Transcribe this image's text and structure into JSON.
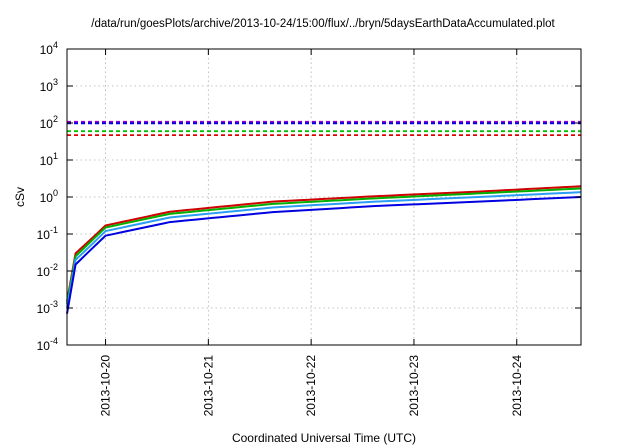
{
  "chart_data": {
    "type": "line",
    "title": "/data/run/goesPlots/archive/2013-10-24/15:00/flux/../bryn/5daysEarthDataAccumulated.plot",
    "xlabel": "Coordinated Universal Time (UTC)",
    "ylabel": "cSv",
    "yscale": "log",
    "ylim": [
      0.0001,
      10000
    ],
    "xlim": [
      "2013-10-19T15:00",
      "2013-10-24T15:00"
    ],
    "x_ticks": [
      "2013-10-20",
      "2013-10-21",
      "2013-10-22",
      "2013-10-23",
      "2013-10-24"
    ],
    "y_ticks": [
      {
        "base": "10",
        "exp": "-4",
        "value": 0.0001
      },
      {
        "base": "10",
        "exp": "-3",
        "value": 0.001
      },
      {
        "base": "10",
        "exp": "-2",
        "value": 0.01
      },
      {
        "base": "10",
        "exp": "-1",
        "value": 0.1
      },
      {
        "base": "10",
        "exp": "0",
        "value": 1
      },
      {
        "base": "10",
        "exp": "1",
        "value": 10
      },
      {
        "base": "10",
        "exp": "2",
        "value": 100
      },
      {
        "base": "10",
        "exp": "3",
        "value": 1000
      },
      {
        "base": "10",
        "exp": "4",
        "value": 10000
      }
    ],
    "grid": true,
    "series": [
      {
        "color": "#d00000",
        "style": "solid",
        "x": [
          "2013-10-19T15:00",
          "2013-10-19T17:00",
          "2013-10-19T21:00",
          "2013-10-20T00:00",
          "2013-10-20T15:00",
          "2013-10-21T15:00",
          "2013-10-22T15:00",
          "2013-10-23T15:00",
          "2013-10-24T15:00"
        ],
        "y": [
          0.0015,
          0.03,
          0.08,
          0.17,
          0.4,
          0.75,
          1.05,
          1.4,
          1.95
        ]
      },
      {
        "color": "#00b000",
        "style": "solid",
        "x": [
          "2013-10-19T15:00",
          "2013-10-19T17:00",
          "2013-10-19T21:00",
          "2013-10-20T00:00",
          "2013-10-20T15:00",
          "2013-10-21T15:00",
          "2013-10-22T15:00",
          "2013-10-23T15:00",
          "2013-10-24T15:00"
        ],
        "y": [
          0.0013,
          0.025,
          0.07,
          0.15,
          0.35,
          0.65,
          0.92,
          1.25,
          1.7
        ]
      },
      {
        "color": "#2a9df4",
        "style": "solid",
        "x": [
          "2013-10-19T15:00",
          "2013-10-19T17:00",
          "2013-10-19T21:00",
          "2013-10-20T00:00",
          "2013-10-20T15:00",
          "2013-10-21T15:00",
          "2013-10-22T15:00",
          "2013-10-23T15:00",
          "2013-10-24T15:00"
        ],
        "y": [
          0.001,
          0.02,
          0.055,
          0.12,
          0.28,
          0.52,
          0.75,
          1.0,
          1.35
        ]
      },
      {
        "color": "#0000e0",
        "style": "solid",
        "x": [
          "2013-10-19T15:00",
          "2013-10-19T17:00",
          "2013-10-19T21:00",
          "2013-10-20T00:00",
          "2013-10-20T15:00",
          "2013-10-21T15:00",
          "2013-10-22T15:00",
          "2013-10-23T15:00",
          "2013-10-24T15:00"
        ],
        "y": [
          0.0007,
          0.015,
          0.042,
          0.09,
          0.21,
          0.39,
          0.57,
          0.75,
          1.0
        ]
      },
      {
        "color": "#9400d3",
        "style": "dashed",
        "x": [
          "2013-10-19T15:00",
          "2013-10-24T15:00"
        ],
        "y": [
          108,
          108
        ]
      },
      {
        "color": "#0000e0",
        "style": "dashed",
        "x": [
          "2013-10-19T15:00",
          "2013-10-24T15:00"
        ],
        "y": [
          98,
          98
        ]
      },
      {
        "color": "#00c000",
        "style": "dashed",
        "x": [
          "2013-10-19T15:00",
          "2013-10-24T15:00"
        ],
        "y": [
          60,
          60
        ]
      },
      {
        "color": "#e00000",
        "style": "dashed",
        "x": [
          "2013-10-19T15:00",
          "2013-10-24T15:00"
        ],
        "y": [
          47,
          47
        ]
      }
    ]
  }
}
